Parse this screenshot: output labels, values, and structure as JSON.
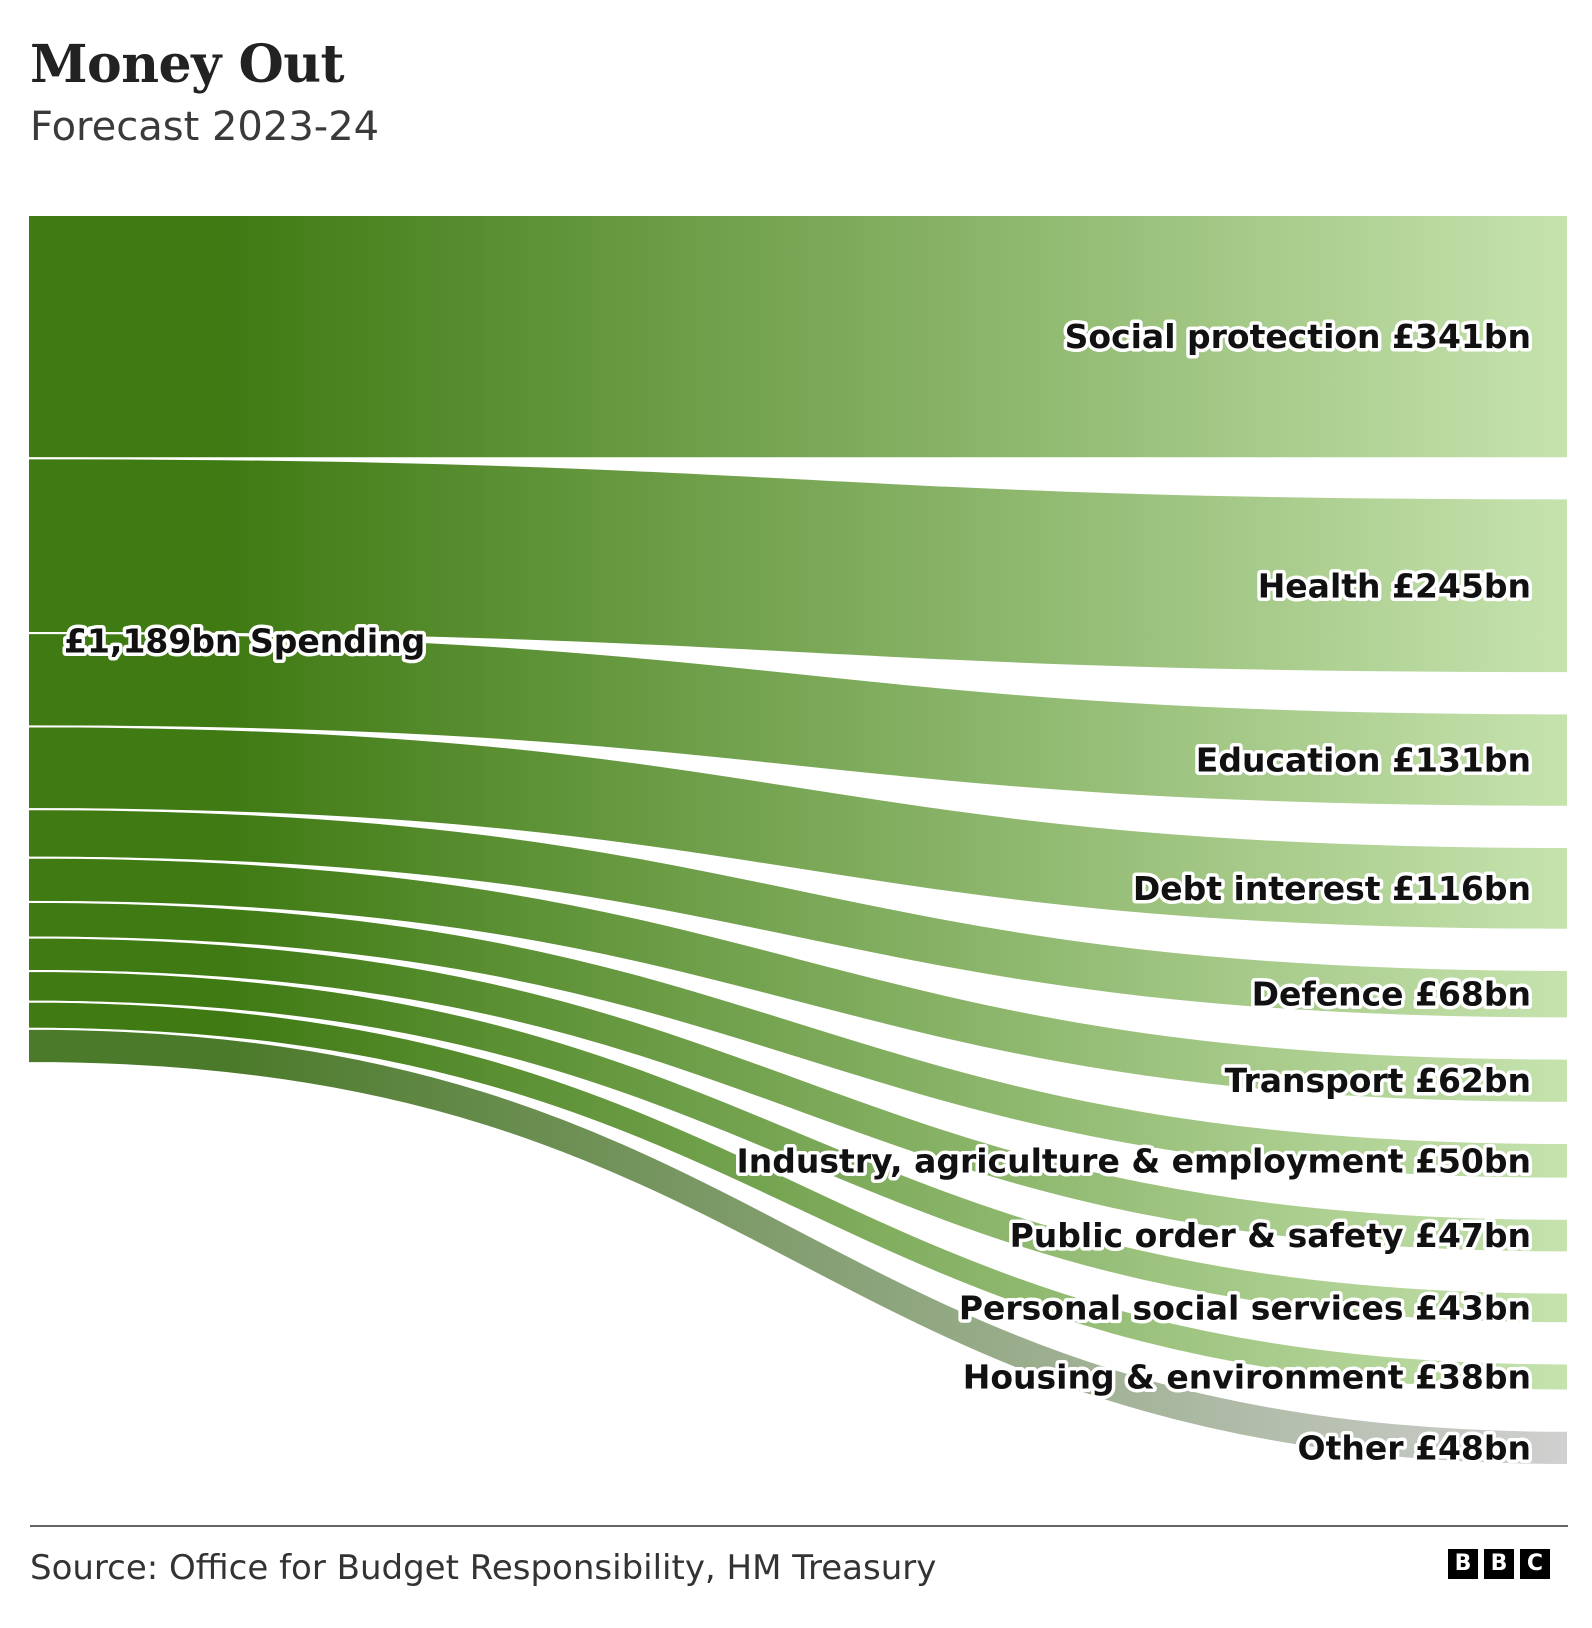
{
  "title": "Money Out",
  "subtitle": "Forecast 2023-24",
  "source": "Source: Office for Budget Responsibility, HM Treasury",
  "logo": [
    "B",
    "B",
    "C"
  ],
  "colors": {
    "flow_dark": "#3f7a13",
    "flow_light": "#c6e3ae",
    "other_dark": "#4b7a2a",
    "other_light": "#d0d0d0"
  },
  "chart_data": {
    "type": "sankey",
    "source_node": {
      "name": "Spending",
      "label": "£1,189bn Spending",
      "value": 1189,
      "unit": "£bn"
    },
    "targets": [
      {
        "name": "Social protection",
        "value": 341,
        "label": "Social protection £341bn"
      },
      {
        "name": "Health",
        "value": 245,
        "label": "Health £245bn"
      },
      {
        "name": "Education",
        "value": 131,
        "label": "Education £131bn"
      },
      {
        "name": "Debt interest",
        "value": 116,
        "label": "Debt interest £116bn"
      },
      {
        "name": "Defence",
        "value": 68,
        "label": "Defence £68bn"
      },
      {
        "name": "Transport",
        "value": 62,
        "label": "Transport £62bn"
      },
      {
        "name": "Industry, agriculture & employment",
        "value": 50,
        "label": "Industry, agriculture & employment £50bn"
      },
      {
        "name": "Public order & safety",
        "value": 47,
        "label": "Public order & safety £47bn"
      },
      {
        "name": "Personal social services",
        "value": 43,
        "label": "Personal social services £43bn"
      },
      {
        "name": "Housing & environment",
        "value": 38,
        "label": "Housing & environment £38bn"
      },
      {
        "name": "Other",
        "value": 48,
        "label": "Other £48bn"
      }
    ]
  }
}
